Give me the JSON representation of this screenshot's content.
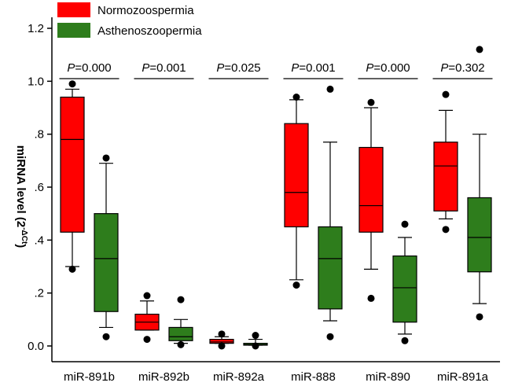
{
  "chart_data": {
    "type": "box",
    "title": "",
    "xlabel": "",
    "ylabel": "miRNA level (2",
    "ylabel_sup": "-ΔCt",
    "ylabel_close": ")",
    "ylim": [
      0,
      1.2
    ],
    "yticks": [
      {
        "value": 0.0,
        "label": "0.0"
      },
      {
        "value": 0.2,
        "label": ".2"
      },
      {
        "value": 0.4,
        "label": ".4"
      },
      {
        "value": 0.6,
        "label": ".6"
      },
      {
        "value": 0.8,
        "label": ".8"
      },
      {
        "value": 1.0,
        "label": "1.0"
      },
      {
        "value": 1.2,
        "label": "1.2"
      }
    ],
    "legend_position": "top-left",
    "categories": [
      "miR-891b",
      "miR-892b",
      "miR-892a",
      "miR-888",
      "miR-890",
      "miR-891a"
    ],
    "p_values": [
      "0.000",
      "0.001",
      "0.025",
      "0.001",
      "0.000",
      "0.302"
    ],
    "p_prefix": "P",
    "p_eq": "=",
    "series": [
      {
        "name": "Normozoospermia",
        "color": "#ff0000",
        "boxes": [
          {
            "whisker_low": 0.3,
            "q1": 0.43,
            "median": 0.78,
            "q3": 0.94,
            "whisker_high": 0.97,
            "outliers": [
              0.29,
              0.99
            ]
          },
          {
            "whisker_low": 0.06,
            "q1": 0.06,
            "median": 0.09,
            "q3": 0.12,
            "whisker_high": 0.17,
            "outliers": [
              0.025,
              0.19
            ]
          },
          {
            "whisker_low": 0.01,
            "q1": 0.01,
            "median": 0.015,
            "q3": 0.025,
            "whisker_high": 0.035,
            "outliers": [
              0.0,
              0.045
            ]
          },
          {
            "whisker_low": 0.25,
            "q1": 0.45,
            "median": 0.58,
            "q3": 0.84,
            "whisker_high": 0.93,
            "outliers": [
              0.23,
              0.94
            ]
          },
          {
            "whisker_low": 0.29,
            "q1": 0.43,
            "median": 0.53,
            "q3": 0.75,
            "whisker_high": 0.9,
            "outliers": [
              0.18,
              0.92
            ]
          },
          {
            "whisker_low": 0.48,
            "q1": 0.51,
            "median": 0.68,
            "q3": 0.77,
            "whisker_high": 0.89,
            "outliers": [
              0.44,
              0.95
            ]
          }
        ]
      },
      {
        "name": "Asthenoszoopermia",
        "color": "#2e7d1c",
        "boxes": [
          {
            "whisker_low": 0.07,
            "q1": 0.13,
            "median": 0.33,
            "q3": 0.5,
            "whisker_high": 0.69,
            "outliers": [
              0.035,
              0.71
            ]
          },
          {
            "whisker_low": 0.01,
            "q1": 0.02,
            "median": 0.035,
            "q3": 0.07,
            "whisker_high": 0.1,
            "outliers": [
              0.005,
              0.175
            ]
          },
          {
            "whisker_low": 0.003,
            "q1": 0.003,
            "median": 0.005,
            "q3": 0.01,
            "whisker_high": 0.025,
            "outliers": [
              0.0,
              0.04
            ]
          },
          {
            "whisker_low": 0.095,
            "q1": 0.14,
            "median": 0.33,
            "q3": 0.45,
            "whisker_high": 0.77,
            "outliers": [
              0.035,
              0.97
            ]
          },
          {
            "whisker_low": 0.045,
            "q1": 0.09,
            "median": 0.22,
            "q3": 0.34,
            "whisker_high": 0.41,
            "outliers": [
              0.02,
              0.46
            ]
          },
          {
            "whisker_low": 0.16,
            "q1": 0.28,
            "median": 0.41,
            "q3": 0.56,
            "whisker_high": 0.8,
            "outliers": [
              0.11,
              1.12
            ]
          }
        ]
      }
    ]
  }
}
